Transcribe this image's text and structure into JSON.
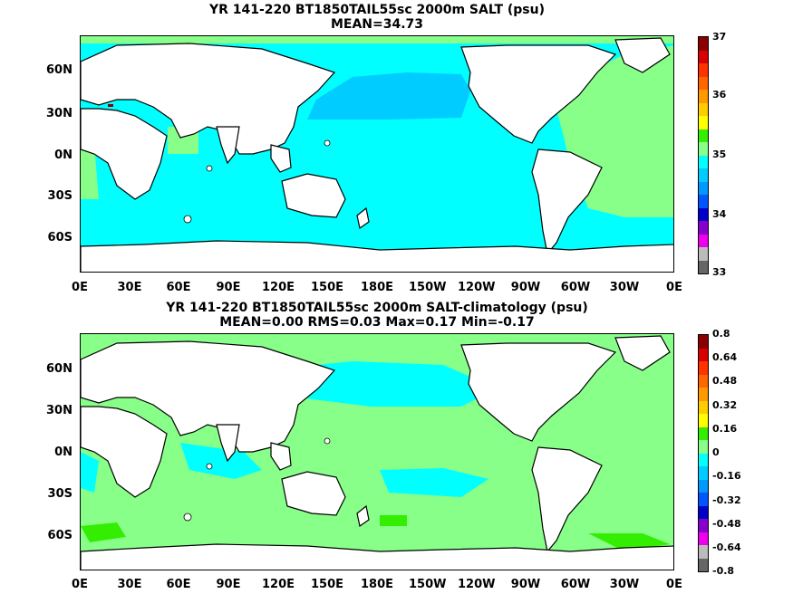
{
  "panels": [
    {
      "title_line1": "YR 141-220 BT1850TAIL55sc 2000m SALT (psu)",
      "title_line2": "MEAN=34.73",
      "colorbar_labels": [
        "37",
        "36",
        "35",
        "34",
        "33"
      ],
      "colorbar_colors": [
        "#8b0000",
        "#d80000",
        "#ff3300",
        "#ff6600",
        "#ff9900",
        "#ffcc00",
        "#ffff00",
        "#33ee00",
        "#88ff88",
        "#00ffff",
        "#00ccff",
        "#0099ff",
        "#0055ff",
        "#0000cc",
        "#8800cc",
        "#ee00ee",
        "#bbbbbb",
        "#666666"
      ]
    },
    {
      "title_line1": "YR 141-220 BT1850TAIL55sc 2000m SALT-climatology (psu)",
      "title_line2": "MEAN=0.00   RMS=0.03   Max=0.17   Min=-0.17",
      "colorbar_labels": [
        "0.8",
        "0.64",
        "0.48",
        "0.32",
        "0.16",
        "0",
        "-0.16",
        "-0.32",
        "-0.48",
        "-0.64",
        "-0.8"
      ],
      "colorbar_colors": [
        "#8b0000",
        "#d80000",
        "#ff3300",
        "#ff6600",
        "#ff9900",
        "#ffcc00",
        "#ffff00",
        "#33ee00",
        "#88ff88",
        "#00ffff",
        "#00ccff",
        "#0099ff",
        "#0055ff",
        "#0000cc",
        "#8800cc",
        "#ee00ee",
        "#bbbbbb",
        "#666666"
      ]
    }
  ],
  "lat_labels": [
    "60N",
    "30N",
    "0N",
    "30S",
    "60S"
  ],
  "lon_labels": [
    "0E",
    "30E",
    "60E",
    "90E",
    "120E",
    "150E",
    "180E",
    "150W",
    "120W",
    "90W",
    "60W",
    "30W",
    "0E"
  ],
  "colors": {
    "land": "#ffffff",
    "salt_ocean": "#00ffff",
    "salt_atlantic": "#88ff88",
    "salt_pacific_north": "#00ccff",
    "anom_ocean": "#88ff88",
    "anom_positive": "#33ee00",
    "anom_negative": "#00ffff"
  }
}
